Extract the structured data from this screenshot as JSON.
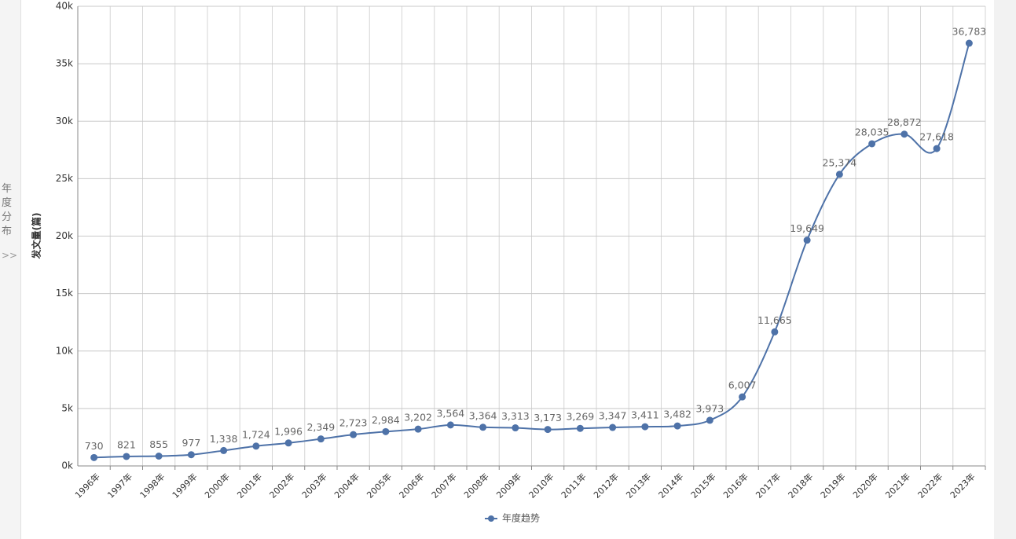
{
  "sidebar": {
    "label": "年度分布",
    "icon": ">>"
  },
  "chart_data": {
    "type": "line",
    "y_label": "发文量(篇)",
    "categories": [
      "1996年",
      "1997年",
      "1998年",
      "1999年",
      "2000年",
      "2001年",
      "2002年",
      "2003年",
      "2004年",
      "2005年",
      "2006年",
      "2007年",
      "2008年",
      "2009年",
      "2010年",
      "2011年",
      "2012年",
      "2013年",
      "2014年",
      "2015年",
      "2016年",
      "2017年",
      "2018年",
      "2019年",
      "2020年",
      "2021年",
      "2022年",
      "2023年"
    ],
    "series": [
      {
        "name": "年度趋势",
        "color": "#4e72a8",
        "values": [
          730,
          821,
          855,
          977,
          1338,
          1724,
          1996,
          2349,
          2723,
          2984,
          3202,
          3564,
          3364,
          3313,
          3173,
          3269,
          3347,
          3411,
          3482,
          3973,
          6007,
          11665,
          19649,
          25374,
          28035,
          28872,
          27618,
          36783
        ],
        "value_labels": [
          "730",
          "821",
          "855",
          "977",
          "1,338",
          "1,724",
          "1,996",
          "2,349",
          "2,723",
          "2,984",
          "3,202",
          "3,564",
          "3,364",
          "3,313",
          "3,173",
          "3,269",
          "3,347",
          "3,411",
          "3,482",
          "3,973",
          "6,007",
          "11,665",
          "19,649",
          "25,374",
          "28,035",
          "28,872",
          "27,618",
          "36,783"
        ]
      }
    ],
    "ylim": [
      0,
      40000
    ],
    "yticks": [
      {
        "value": 0,
        "label": "0k"
      },
      {
        "value": 5000,
        "label": "5k"
      },
      {
        "value": 10000,
        "label": "10k"
      },
      {
        "value": 15000,
        "label": "15k"
      },
      {
        "value": 20000,
        "label": "20k"
      },
      {
        "value": 25000,
        "label": "25k"
      },
      {
        "value": 30000,
        "label": "30k"
      },
      {
        "value": 35000,
        "label": "35k"
      },
      {
        "value": 40000,
        "label": "40k"
      }
    ],
    "grid": true,
    "legend": "bottom"
  }
}
